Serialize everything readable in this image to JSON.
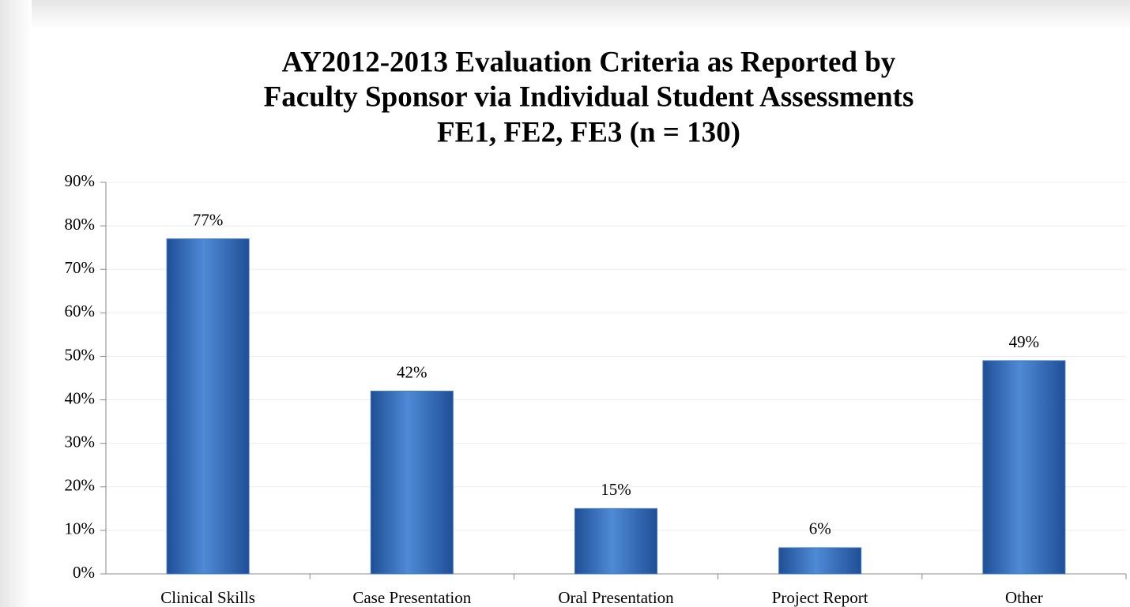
{
  "chart_data": {
    "type": "bar",
    "title": [
      "AY2012-2013 Evaluation Criteria as Reported by",
      "Faculty Sponsor via Individual Student Assessments",
      "FE1, FE2, FE3 (n = 130)"
    ],
    "categories": [
      "Clinical Skills",
      "Case Presentation",
      "Oral Presentation",
      "Project Report",
      "Other"
    ],
    "values": [
      77,
      42,
      15,
      6,
      49
    ],
    "value_labels": [
      "77%",
      "42%",
      "15%",
      "6%",
      "49%"
    ],
    "color": "#3c75c4",
    "ylim": [
      0,
      90
    ],
    "yticks": [
      {
        "value": 0,
        "label": "0%"
      },
      {
        "value": 10,
        "label": "10%"
      },
      {
        "value": 20,
        "label": "20%"
      },
      {
        "value": 30,
        "label": "30%"
      },
      {
        "value": 40,
        "label": "40%"
      },
      {
        "value": 50,
        "label": "50%"
      },
      {
        "value": 60,
        "label": "60%"
      },
      {
        "value": 70,
        "label": "70%"
      },
      {
        "value": 80,
        "label": "80%"
      },
      {
        "value": 90,
        "label": "90%"
      }
    ],
    "grid": true
  }
}
